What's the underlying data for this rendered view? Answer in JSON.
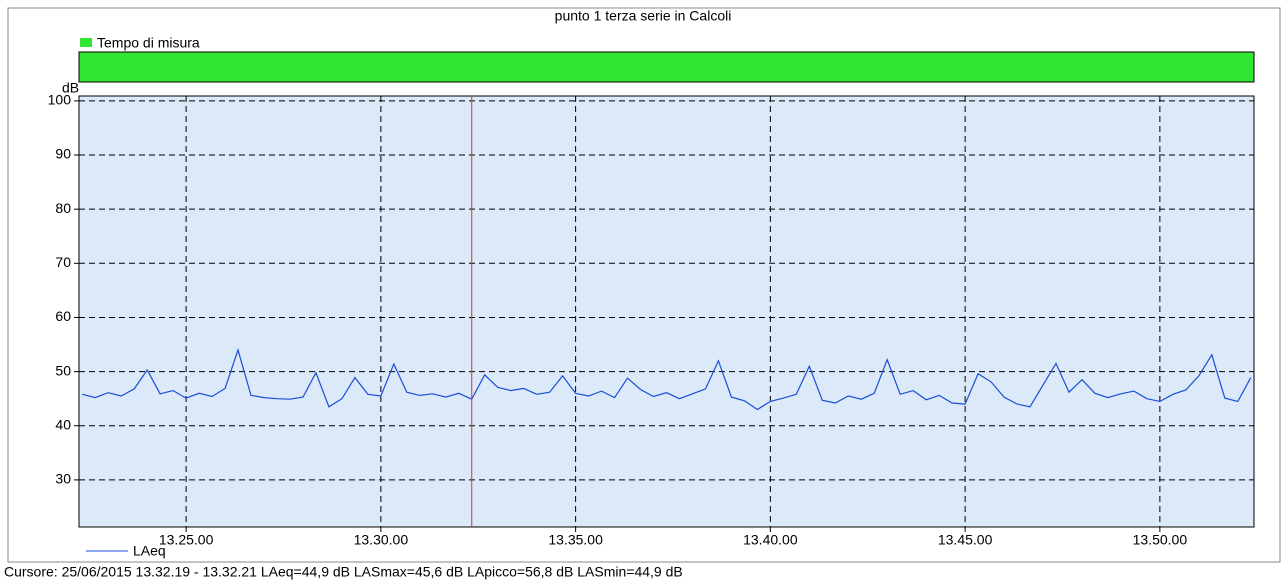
{
  "chart_data": {
    "type": "line",
    "title": "punto 1 terza serie in Calcoli",
    "band_legend": "Tempo di misura",
    "band_color": "#33e633",
    "ylabel": "dB",
    "cursor_text": "Cursore: 25/06/2015 13.32.19 - 13.32.21  LAeq=44,9 dB  LASmax=45,6 dB  LApicco=56,8 dB  LASmin=44,9 dB",
    "cursor_x": "13.32.20",
    "cursor_color": "#e03030",
    "xlim": [
      "13.22.15",
      "13.52.25"
    ],
    "xticks": [
      "13.25.00",
      "13.30.00",
      "13.35.00",
      "13.40.00",
      "13.45.00",
      "13.50.00"
    ],
    "ylim": [
      21.3,
      100.9
    ],
    "yticks": [
      30,
      40,
      50,
      60,
      70,
      80,
      90,
      100
    ],
    "grid": true,
    "x": [
      "13.22.20",
      "13.22.40",
      "13.23.00",
      "13.23.20",
      "13.23.40",
      "13.24.00",
      "13.24.20",
      "13.24.40",
      "13.25.00",
      "13.25.20",
      "13.25.40",
      "13.26.00",
      "13.26.20",
      "13.26.40",
      "13.27.00",
      "13.27.20",
      "13.27.40",
      "13.28.00",
      "13.28.20",
      "13.28.40",
      "13.29.00",
      "13.29.20",
      "13.29.40",
      "13.30.00",
      "13.30.20",
      "13.30.40",
      "13.31.00",
      "13.31.20",
      "13.31.40",
      "13.32.00",
      "13.32.20",
      "13.32.40",
      "13.33.00",
      "13.33.20",
      "13.33.40",
      "13.34.00",
      "13.34.20",
      "13.34.40",
      "13.35.00",
      "13.35.20",
      "13.35.40",
      "13.36.00",
      "13.36.20",
      "13.36.40",
      "13.37.00",
      "13.37.20",
      "13.37.40",
      "13.38.00",
      "13.38.20",
      "13.38.40",
      "13.39.00",
      "13.39.20",
      "13.39.40",
      "13.40.00",
      "13.40.20",
      "13.40.40",
      "13.41.00",
      "13.41.20",
      "13.41.40",
      "13.42.00",
      "13.42.20",
      "13.42.40",
      "13.43.00",
      "13.43.20",
      "13.43.40",
      "13.44.00",
      "13.44.20",
      "13.44.40",
      "13.45.00",
      "13.45.20",
      "13.45.40",
      "13.46.00",
      "13.46.20",
      "13.46.40",
      "13.47.00",
      "13.47.20",
      "13.47.40",
      "13.48.00",
      "13.48.20",
      "13.48.40",
      "13.49.00",
      "13.49.20",
      "13.49.40",
      "13.50.00",
      "13.50.20",
      "13.50.40",
      "13.51.00",
      "13.51.20",
      "13.51.40",
      "13.52.00",
      "13.52.20"
    ],
    "series": [
      {
        "name": "LAeq",
        "color": "#1a4fd6",
        "values": [
          45.8,
          45.2,
          46.1,
          45.5,
          46.8,
          50.3,
          45.9,
          46.5,
          45.1,
          46.0,
          45.4,
          46.9,
          54.0,
          45.6,
          45.2,
          45.0,
          44.9,
          45.3,
          49.8,
          43.5,
          45.0,
          48.9,
          45.8,
          45.5,
          51.4,
          46.2,
          45.6,
          45.9,
          45.3,
          46.0,
          44.9,
          49.4,
          47.1,
          46.5,
          46.9,
          45.8,
          46.2,
          49.2,
          46.0,
          45.5,
          46.4,
          45.2,
          48.8,
          46.7,
          45.4,
          46.1,
          45.0,
          45.9,
          46.8,
          52.0,
          45.3,
          44.6,
          43.0,
          44.5,
          45.1,
          45.8,
          51.0,
          44.7,
          44.2,
          45.5,
          44.9,
          46.0,
          52.2,
          45.8,
          46.5,
          44.8,
          45.6,
          44.2,
          44.0,
          49.6,
          48.1,
          45.3,
          44.0,
          43.5,
          47.5,
          51.5,
          46.2,
          48.5,
          46.0,
          45.2,
          45.9,
          46.4,
          45.0,
          44.5,
          45.8,
          46.6,
          49.2,
          53.1,
          45.1,
          44.5,
          48.9
        ]
      }
    ]
  }
}
